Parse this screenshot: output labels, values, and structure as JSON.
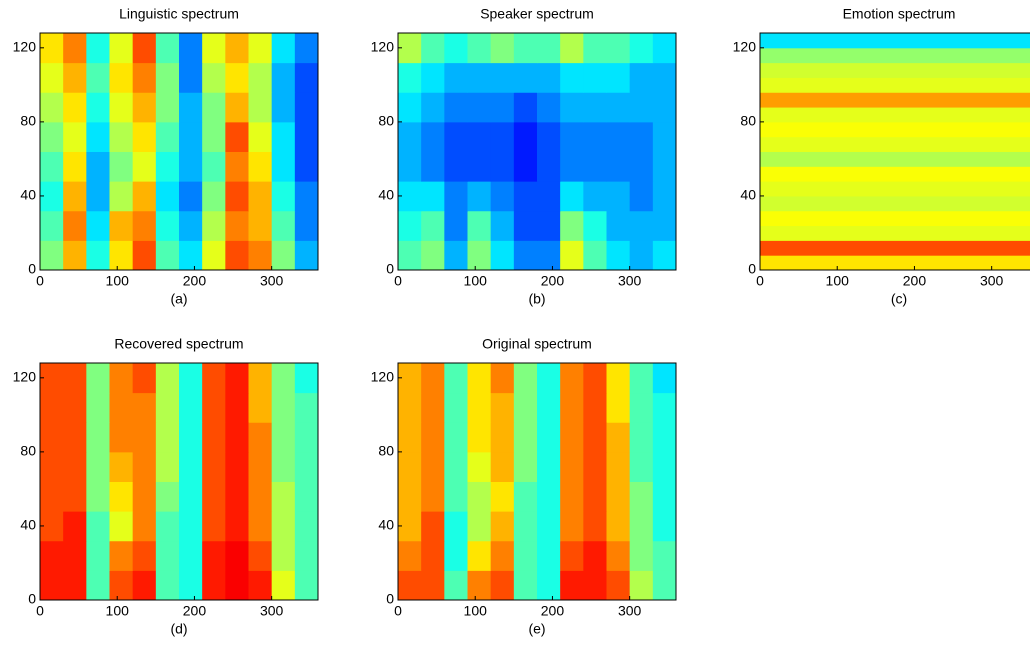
{
  "chart_data": [
    {
      "type": "heatmap",
      "title": "Linguistic spectrum",
      "xlabel": "(a)",
      "colormap": "jet",
      "clim": [
        0,
        1
      ],
      "xlim": [
        0,
        360
      ],
      "ylim": [
        0,
        128
      ],
      "xticks": [
        0,
        100,
        200,
        300
      ],
      "yticks": [
        0,
        40,
        80,
        120
      ],
      "values": [
        [
          0.5,
          0.7,
          0.4,
          0.65,
          0.8,
          0.45,
          0.35,
          0.6,
          0.8,
          0.75,
          0.5,
          0.3
        ],
        [
          0.45,
          0.75,
          0.35,
          0.7,
          0.75,
          0.4,
          0.3,
          0.55,
          0.75,
          0.7,
          0.45,
          0.25
        ],
        [
          0.4,
          0.7,
          0.3,
          0.55,
          0.7,
          0.35,
          0.25,
          0.5,
          0.8,
          0.7,
          0.4,
          0.25
        ],
        [
          0.45,
          0.65,
          0.3,
          0.5,
          0.6,
          0.4,
          0.3,
          0.45,
          0.75,
          0.65,
          0.35,
          0.2
        ],
        [
          0.5,
          0.6,
          0.35,
          0.55,
          0.65,
          0.45,
          0.3,
          0.5,
          0.8,
          0.6,
          0.35,
          0.2
        ],
        [
          0.55,
          0.65,
          0.4,
          0.6,
          0.7,
          0.5,
          0.3,
          0.5,
          0.7,
          0.55,
          0.3,
          0.2
        ],
        [
          0.6,
          0.7,
          0.45,
          0.65,
          0.75,
          0.5,
          0.25,
          0.55,
          0.65,
          0.55,
          0.3,
          0.2
        ],
        [
          0.65,
          0.75,
          0.4,
          0.6,
          0.8,
          0.45,
          0.25,
          0.6,
          0.7,
          0.6,
          0.35,
          0.25
        ]
      ]
    },
    {
      "type": "heatmap",
      "title": "Speaker spectrum",
      "xlabel": "(b)",
      "colormap": "jet",
      "clim": [
        0,
        1
      ],
      "xlim": [
        0,
        360
      ],
      "ylim": [
        0,
        128
      ],
      "xticks": [
        0,
        100,
        200,
        300
      ],
      "yticks": [
        0,
        40,
        80,
        120
      ],
      "values": [
        [
          0.45,
          0.5,
          0.3,
          0.5,
          0.35,
          0.25,
          0.25,
          0.6,
          0.45,
          0.35,
          0.3,
          0.35
        ],
        [
          0.4,
          0.45,
          0.25,
          0.45,
          0.3,
          0.2,
          0.2,
          0.5,
          0.4,
          0.3,
          0.3,
          0.3
        ],
        [
          0.35,
          0.35,
          0.25,
          0.3,
          0.25,
          0.2,
          0.2,
          0.35,
          0.3,
          0.3,
          0.25,
          0.3
        ],
        [
          0.3,
          0.25,
          0.2,
          0.2,
          0.2,
          0.15,
          0.2,
          0.25,
          0.25,
          0.25,
          0.25,
          0.3
        ],
        [
          0.3,
          0.25,
          0.2,
          0.2,
          0.2,
          0.15,
          0.2,
          0.25,
          0.25,
          0.25,
          0.25,
          0.3
        ],
        [
          0.35,
          0.3,
          0.25,
          0.25,
          0.25,
          0.2,
          0.25,
          0.3,
          0.3,
          0.3,
          0.3,
          0.3
        ],
        [
          0.4,
          0.35,
          0.3,
          0.3,
          0.3,
          0.3,
          0.3,
          0.35,
          0.35,
          0.35,
          0.3,
          0.3
        ],
        [
          0.55,
          0.45,
          0.4,
          0.45,
          0.5,
          0.45,
          0.45,
          0.55,
          0.45,
          0.45,
          0.4,
          0.35
        ]
      ]
    },
    {
      "type": "heatmap",
      "title": "Emotion spectrum",
      "xlabel": "(c)",
      "colormap": "jet",
      "clim": [
        0,
        1
      ],
      "xlim": [
        0,
        360
      ],
      "ylim": [
        0,
        128
      ],
      "xticks": [
        0,
        100,
        200,
        300
      ],
      "yticks": [
        0,
        40,
        80,
        120
      ],
      "values": [
        [
          0.65
        ],
        [
          0.8
        ],
        [
          0.6
        ],
        [
          0.62
        ],
        [
          0.58
        ],
        [
          0.6
        ],
        [
          0.62
        ],
        [
          0.55
        ],
        [
          0.6
        ],
        [
          0.62
        ],
        [
          0.6
        ],
        [
          0.72
        ],
        [
          0.6
        ],
        [
          0.58
        ],
        [
          0.52
        ],
        [
          0.35
        ]
      ]
    },
    {
      "type": "heatmap",
      "title": "Recovered spectrum",
      "xlabel": "(d)",
      "colormap": "jet",
      "clim": [
        0,
        1
      ],
      "xlim": [
        0,
        360
      ],
      "ylim": [
        0,
        128
      ],
      "xticks": [
        0,
        100,
        200,
        300
      ],
      "yticks": [
        0,
        40,
        80,
        120
      ],
      "values": [
        [
          0.85,
          0.85,
          0.45,
          0.8,
          0.85,
          0.45,
          0.4,
          0.85,
          0.88,
          0.85,
          0.6,
          0.45
        ],
        [
          0.85,
          0.85,
          0.45,
          0.75,
          0.8,
          0.45,
          0.4,
          0.85,
          0.88,
          0.8,
          0.55,
          0.45
        ],
        [
          0.8,
          0.85,
          0.45,
          0.6,
          0.75,
          0.45,
          0.4,
          0.8,
          0.85,
          0.75,
          0.55,
          0.45
        ],
        [
          0.8,
          0.8,
          0.5,
          0.65,
          0.75,
          0.5,
          0.4,
          0.8,
          0.85,
          0.75,
          0.55,
          0.45
        ],
        [
          0.8,
          0.8,
          0.5,
          0.7,
          0.75,
          0.55,
          0.4,
          0.8,
          0.85,
          0.75,
          0.5,
          0.45
        ],
        [
          0.8,
          0.8,
          0.5,
          0.75,
          0.75,
          0.55,
          0.4,
          0.8,
          0.85,
          0.75,
          0.5,
          0.45
        ],
        [
          0.8,
          0.8,
          0.5,
          0.75,
          0.75,
          0.55,
          0.4,
          0.8,
          0.85,
          0.7,
          0.5,
          0.45
        ],
        [
          0.8,
          0.8,
          0.5,
          0.75,
          0.8,
          0.55,
          0.4,
          0.8,
          0.85,
          0.7,
          0.5,
          0.4
        ]
      ]
    },
    {
      "type": "heatmap",
      "title": "Original spectrum",
      "xlabel": "(e)",
      "colormap": "jet",
      "clim": [
        0,
        1
      ],
      "xlim": [
        0,
        360
      ],
      "ylim": [
        0,
        128
      ],
      "xticks": [
        0,
        100,
        200,
        300
      ],
      "yticks": [
        0,
        40,
        80,
        120
      ],
      "values": [
        [
          0.8,
          0.8,
          0.45,
          0.75,
          0.8,
          0.45,
          0.4,
          0.85,
          0.85,
          0.8,
          0.55,
          0.45
        ],
        [
          0.75,
          0.8,
          0.4,
          0.65,
          0.75,
          0.45,
          0.4,
          0.8,
          0.85,
          0.75,
          0.5,
          0.45
        ],
        [
          0.7,
          0.8,
          0.4,
          0.55,
          0.7,
          0.45,
          0.4,
          0.75,
          0.8,
          0.7,
          0.5,
          0.4
        ],
        [
          0.7,
          0.75,
          0.45,
          0.55,
          0.65,
          0.45,
          0.4,
          0.75,
          0.8,
          0.7,
          0.5,
          0.4
        ],
        [
          0.7,
          0.75,
          0.45,
          0.6,
          0.7,
          0.5,
          0.4,
          0.75,
          0.8,
          0.7,
          0.45,
          0.4
        ],
        [
          0.7,
          0.75,
          0.45,
          0.65,
          0.7,
          0.5,
          0.4,
          0.75,
          0.8,
          0.7,
          0.45,
          0.4
        ],
        [
          0.7,
          0.75,
          0.45,
          0.65,
          0.7,
          0.5,
          0.4,
          0.75,
          0.8,
          0.65,
          0.45,
          0.4
        ],
        [
          0.7,
          0.75,
          0.45,
          0.65,
          0.75,
          0.5,
          0.4,
          0.75,
          0.8,
          0.65,
          0.45,
          0.35
        ]
      ]
    }
  ]
}
